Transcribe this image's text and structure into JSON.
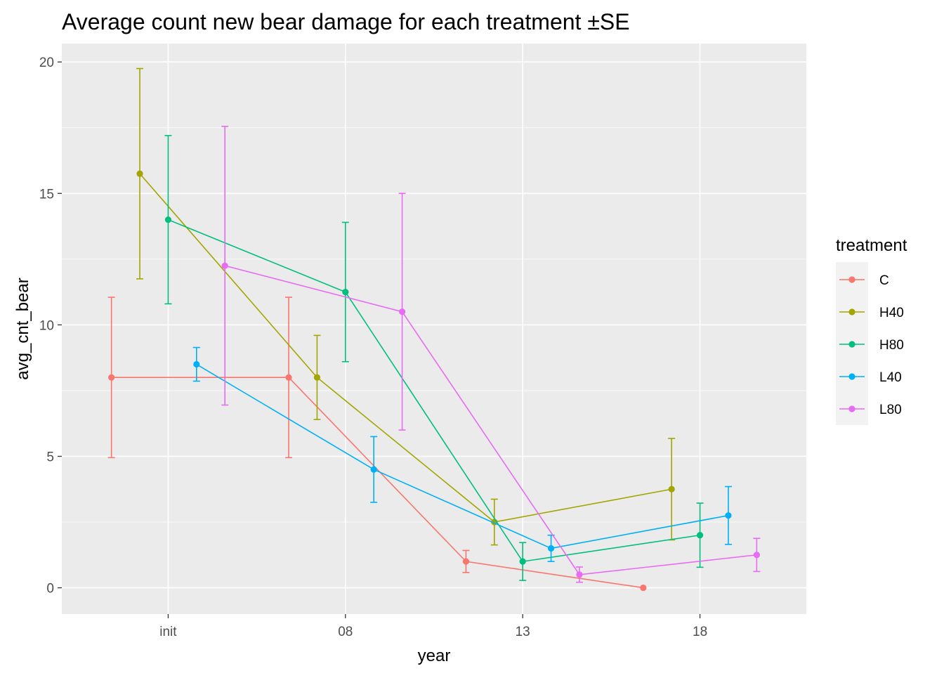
{
  "chart_data": {
    "type": "line",
    "title": "Average count new bear damage for each treatment ±SE",
    "xlabel": "year",
    "ylabel": "avg_cnt_bear",
    "categories": [
      "init",
      "08",
      "13",
      "18"
    ],
    "ylim": [
      -1,
      20.7
    ],
    "yticks": [
      0,
      5,
      10,
      15,
      20
    ],
    "grid": true,
    "legend_title": "treatment",
    "legend_position": "right",
    "dodge": true,
    "series": [
      {
        "name": "C",
        "color": "#F8766D",
        "values": [
          8,
          8,
          1,
          0
        ],
        "errors": [
          3.05,
          3.05,
          0.42,
          0
        ]
      },
      {
        "name": "H40",
        "color": "#A3A500",
        "values": [
          15.75,
          8,
          2.5,
          3.75
        ],
        "errors": [
          4.0,
          1.6,
          0.87,
          1.93
        ]
      },
      {
        "name": "H80",
        "color": "#00BF7D",
        "values": [
          14,
          11.25,
          1,
          2
        ],
        "errors": [
          3.2,
          2.65,
          0.72,
          1.22
        ]
      },
      {
        "name": "L40",
        "color": "#00B0F6",
        "values": [
          8.5,
          4.5,
          1.5,
          2.75
        ],
        "errors": [
          0.64,
          1.25,
          0.5,
          1.1
        ]
      },
      {
        "name": "L80",
        "color": "#E76BF3",
        "values": [
          12.25,
          10.5,
          0.5,
          1.25
        ],
        "errors": [
          5.3,
          4.5,
          0.29,
          0.63
        ]
      }
    ]
  }
}
